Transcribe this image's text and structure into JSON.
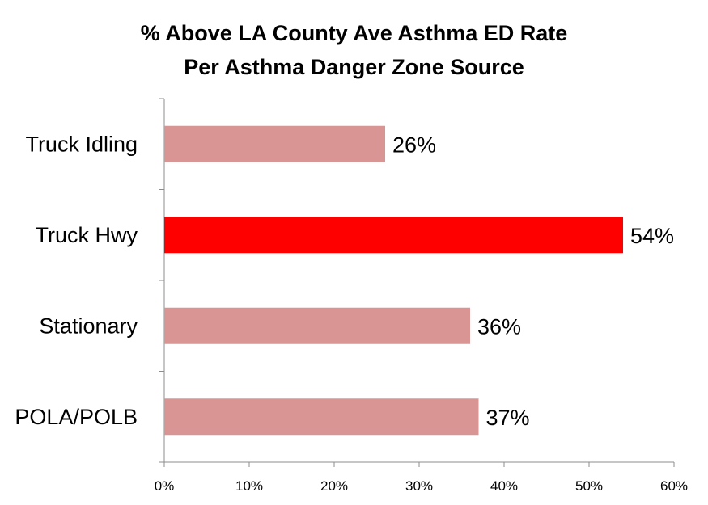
{
  "chart_data": {
    "type": "bar",
    "orientation": "horizontal",
    "title_line1": "% Above LA County Ave Asthma ED Rate",
    "title_line2": "Per Asthma Danger Zone Source",
    "categories": [
      "Truck Idling",
      "Truck Hwy",
      "Stationary",
      "POLA/POLB"
    ],
    "values": [
      26,
      54,
      36,
      37
    ],
    "data_labels": [
      "26%",
      "54%",
      "36%",
      "37%"
    ],
    "bar_colors": [
      "#d99594",
      "#ff0000",
      "#d99594",
      "#d99594"
    ],
    "xlim": [
      0,
      60
    ],
    "x_ticks": [
      0,
      10,
      20,
      30,
      40,
      50,
      60
    ],
    "x_tick_labels": [
      "0%",
      "10%",
      "20%",
      "30%",
      "40%",
      "50%",
      "60%"
    ],
    "grid": false,
    "legend": "none"
  }
}
